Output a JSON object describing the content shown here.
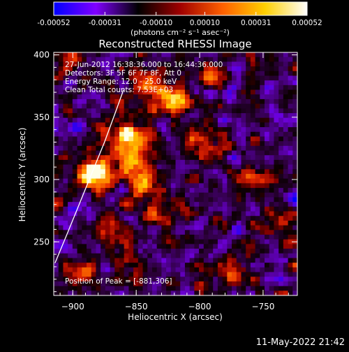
{
  "colorbar": {
    "tick_labels": [
      "-0.00052",
      "-0.00031",
      "-0.00010",
      "0.00010",
      "0.00031",
      "0.00052"
    ],
    "tick_values": [
      -0.00052,
      -0.00031,
      -0.0001,
      0.0001,
      0.00031,
      0.00052
    ],
    "range": [
      -0.00052,
      0.00052
    ],
    "unit_label": "(photons cm⁻² s⁻¹ asec⁻²)",
    "colors": [
      "#0000ff",
      "#8000ff",
      "#000000",
      "#a00000",
      "#ff6000",
      "#ffd000",
      "#ffffff"
    ]
  },
  "chart_data": {
    "type": "heatmap",
    "title": "Reconstructed RHESSI Image",
    "xlabel": "Heliocentric X (arcsec)",
    "ylabel": "Heliocentric Y (arcsec)",
    "xlim": [
      -915,
      -723
    ],
    "ylim": [
      207,
      402
    ],
    "x_ticks": [
      -900,
      -850,
      -800,
      -750
    ],
    "y_ticks": [
      250,
      300,
      350,
      400
    ],
    "x_tick_labels": [
      "−900",
      "−850",
      "−800",
      "−750"
    ],
    "y_tick_labels": [
      "250",
      "300",
      "350",
      "400"
    ],
    "annotations": [
      "27-Jun-2012 16:38:36.000 to 16:44:36.000",
      "Detectors: 3F 5F 6F 7F 8F, Att 0",
      "Energy Range: 12.0 - 25.0 keV",
      "Clean     Total counts: 7.53E+03"
    ],
    "peak_label": "Position of Peak = [-881,306]",
    "peak": [
      -881,
      306
    ],
    "limb_curve": [
      [
        -914,
        233
      ],
      [
        -905,
        255
      ],
      [
        -895,
        280
      ],
      [
        -885,
        305
      ],
      [
        -875,
        330
      ],
      [
        -866,
        355
      ],
      [
        -860,
        372
      ]
    ],
    "emission_sources": [
      {
        "x": -885,
        "y": 305,
        "intensity": 1.0,
        "radius": 14
      },
      {
        "x": -860,
        "y": 330,
        "intensity": 0.85,
        "radius": 18
      },
      {
        "x": -820,
        "y": 365,
        "intensity": 0.85,
        "radius": 13
      },
      {
        "x": -845,
        "y": 300,
        "intensity": 0.8,
        "radius": 16
      },
      {
        "x": -800,
        "y": 330,
        "intensity": 0.6,
        "radius": 14
      },
      {
        "x": -840,
        "y": 375,
        "intensity": 0.6,
        "radius": 12
      },
      {
        "x": -870,
        "y": 260,
        "intensity": 0.5,
        "radius": 15
      },
      {
        "x": -895,
        "y": 225,
        "intensity": 0.55,
        "radius": 10
      },
      {
        "x": -830,
        "y": 270,
        "intensity": 0.4,
        "radius": 12
      },
      {
        "x": -760,
        "y": 300,
        "intensity": 0.45,
        "radius": 14
      },
      {
        "x": -790,
        "y": 385,
        "intensity": 0.5,
        "radius": 10
      },
      {
        "x": -775,
        "y": 225,
        "intensity": 0.5,
        "radius": 10
      },
      {
        "x": -905,
        "y": 390,
        "intensity": 0.55,
        "radius": 14
      },
      {
        "x": -740,
        "y": 260,
        "intensity": 0.35,
        "radius": 12
      }
    ]
  },
  "footer": {
    "timestamp": "11-May-2022 21:42"
  }
}
